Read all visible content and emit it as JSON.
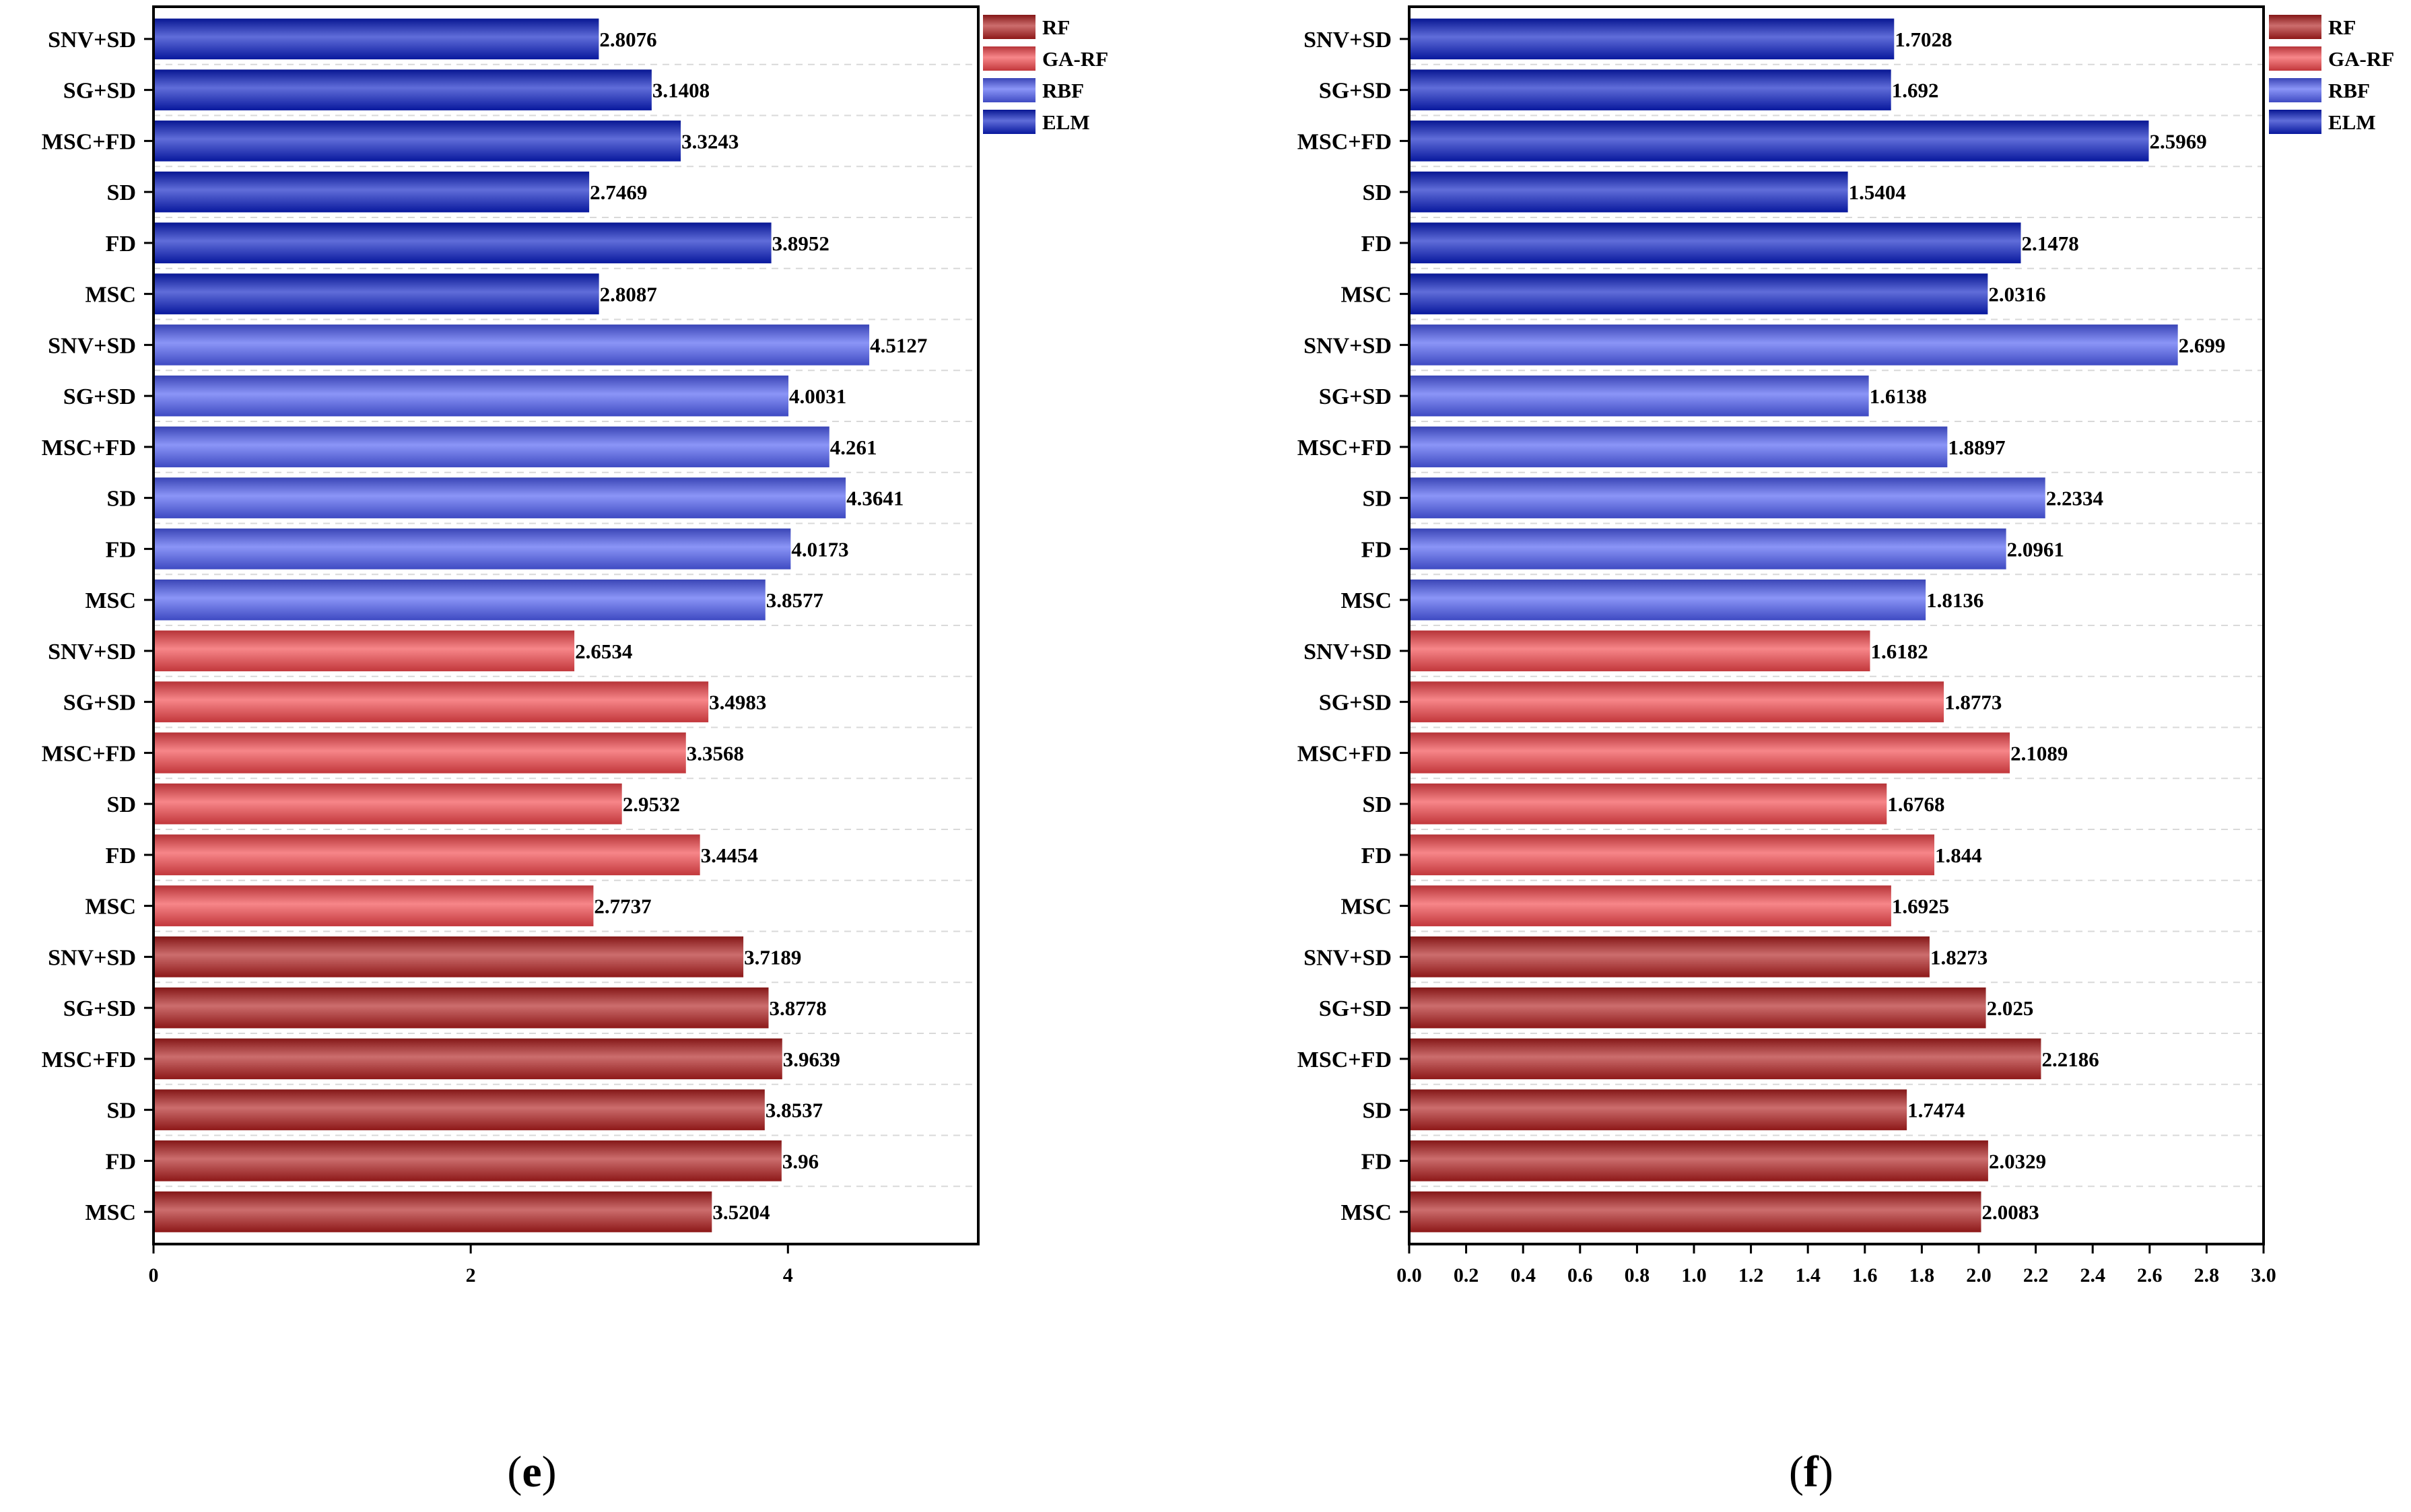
{
  "series_colors": {
    "RF": "#b01e1e",
    "GA-RF": "#f2454a",
    "RBF": "#4d5cf2",
    "ELM": "#0a1ec4"
  },
  "legend": [
    "RF",
    "GA-RF",
    "RBF",
    "ELM"
  ],
  "chart_data": [
    {
      "type": "bar",
      "orientation": "horizontal",
      "panel_label": "e",
      "xlim": [
        0,
        5.2
      ],
      "xticks": [
        0,
        2,
        4
      ],
      "xtick_labels": [
        "0",
        "2",
        "4"
      ],
      "legend_position": "top-right",
      "grid": true,
      "bars": [
        {
          "group": "RF",
          "label": "MSC",
          "value": 3.5204,
          "value_label": "3.5204"
        },
        {
          "group": "RF",
          "label": "FD",
          "value": 3.96,
          "value_label": "3.96"
        },
        {
          "group": "RF",
          "label": "SD",
          "value": 3.8537,
          "value_label": "3.8537"
        },
        {
          "group": "RF",
          "label": "MSC+FD",
          "value": 3.9639,
          "value_label": "3.9639"
        },
        {
          "group": "RF",
          "label": "SG+SD",
          "value": 3.8778,
          "value_label": "3.8778"
        },
        {
          "group": "RF",
          "label": "SNV+SD",
          "value": 3.7189,
          "value_label": "3.7189"
        },
        {
          "group": "GA-RF",
          "label": "MSC",
          "value": 2.7737,
          "value_label": "2.7737"
        },
        {
          "group": "GA-RF",
          "label": "FD",
          "value": 3.4454,
          "value_label": "3.4454"
        },
        {
          "group": "GA-RF",
          "label": "SD",
          "value": 2.9532,
          "value_label": "2.9532"
        },
        {
          "group": "GA-RF",
          "label": "MSC+FD",
          "value": 3.3568,
          "value_label": "3.3568"
        },
        {
          "group": "GA-RF",
          "label": "SG+SD",
          "value": 3.4983,
          "value_label": "3.4983"
        },
        {
          "group": "GA-RF",
          "label": "SNV+SD",
          "value": 2.6534,
          "value_label": "2.6534"
        },
        {
          "group": "RBF",
          "label": "MSC",
          "value": 3.8577,
          "value_label": "3.8577"
        },
        {
          "group": "RBF",
          "label": "FD",
          "value": 4.0173,
          "value_label": "4.0173"
        },
        {
          "group": "RBF",
          "label": "SD",
          "value": 4.3641,
          "value_label": "4.3641"
        },
        {
          "group": "RBF",
          "label": "MSC+FD",
          "value": 4.261,
          "value_label": "4.261"
        },
        {
          "group": "RBF",
          "label": "SG+SD",
          "value": 4.0031,
          "value_label": "4.0031"
        },
        {
          "group": "RBF",
          "label": "SNV+SD",
          "value": 4.5127,
          "value_label": "4.5127"
        },
        {
          "group": "ELM",
          "label": "MSC",
          "value": 2.8087,
          "value_label": "2.8087"
        },
        {
          "group": "ELM",
          "label": "FD",
          "value": 3.8952,
          "value_label": "3.8952"
        },
        {
          "group": "ELM",
          "label": "SD",
          "value": 2.7469,
          "value_label": "2.7469"
        },
        {
          "group": "ELM",
          "label": "MSC+FD",
          "value": 3.3243,
          "value_label": "3.3243"
        },
        {
          "group": "ELM",
          "label": "SG+SD",
          "value": 3.1408,
          "value_label": "3.1408"
        },
        {
          "group": "ELM",
          "label": "SNV+SD",
          "value": 2.8076,
          "value_label": "2.8076"
        }
      ]
    },
    {
      "type": "bar",
      "orientation": "horizontal",
      "panel_label": "f",
      "xlim": [
        0,
        3.0
      ],
      "xticks": [
        0,
        0.2,
        0.4,
        0.6,
        0.8,
        1.0,
        1.2,
        1.4,
        1.6,
        1.8,
        2.0,
        2.2,
        2.4,
        2.6,
        2.8,
        3.0
      ],
      "xtick_labels": [
        "0.0",
        "0.2",
        "0.4",
        "0.6",
        "0.8",
        "1.0",
        "1.2",
        "1.4",
        "1.6",
        "1.8",
        "2.0",
        "2.2",
        "2.4",
        "2.6",
        "2.8",
        "3.0"
      ],
      "legend_position": "top-right",
      "grid": true,
      "bars": [
        {
          "group": "RF",
          "label": "MSC",
          "value": 2.0083,
          "value_label": "2.0083"
        },
        {
          "group": "RF",
          "label": "FD",
          "value": 2.0329,
          "value_label": "2.0329"
        },
        {
          "group": "RF",
          "label": "SD",
          "value": 1.7474,
          "value_label": "1.7474"
        },
        {
          "group": "RF",
          "label": "MSC+FD",
          "value": 2.2186,
          "value_label": "2.2186"
        },
        {
          "group": "RF",
          "label": "SG+SD",
          "value": 2.025,
          "value_label": "2.025"
        },
        {
          "group": "RF",
          "label": "SNV+SD",
          "value": 1.8273,
          "value_label": "1.8273"
        },
        {
          "group": "GA-RF",
          "label": "MSC",
          "value": 1.6925,
          "value_label": "1.6925"
        },
        {
          "group": "GA-RF",
          "label": "FD",
          "value": 1.844,
          "value_label": "1.844"
        },
        {
          "group": "GA-RF",
          "label": "SD",
          "value": 1.6768,
          "value_label": "1.6768"
        },
        {
          "group": "GA-RF",
          "label": "MSC+FD",
          "value": 2.1089,
          "value_label": "2.1089"
        },
        {
          "group": "GA-RF",
          "label": "SG+SD",
          "value": 1.8773,
          "value_label": "1.8773"
        },
        {
          "group": "GA-RF",
          "label": "SNV+SD",
          "value": 1.6182,
          "value_label": "1.6182"
        },
        {
          "group": "RBF",
          "label": "MSC",
          "value": 1.8136,
          "value_label": "1.8136"
        },
        {
          "group": "RBF",
          "label": "FD",
          "value": 2.0961,
          "value_label": "2.0961"
        },
        {
          "group": "RBF",
          "label": "SD",
          "value": 2.2334,
          "value_label": "2.2334"
        },
        {
          "group": "RBF",
          "label": "MSC+FD",
          "value": 1.8897,
          "value_label": "1.8897"
        },
        {
          "group": "RBF",
          "label": "SG+SD",
          "value": 1.6138,
          "value_label": "1.6138"
        },
        {
          "group": "RBF",
          "label": "SNV+SD",
          "value": 2.699,
          "value_label": "2.699"
        },
        {
          "group": "ELM",
          "label": "MSC",
          "value": 2.0316,
          "value_label": "2.0316"
        },
        {
          "group": "ELM",
          "label": "FD",
          "value": 2.1478,
          "value_label": "2.1478"
        },
        {
          "group": "ELM",
          "label": "SD",
          "value": 1.5404,
          "value_label": "1.5404"
        },
        {
          "group": "ELM",
          "label": "MSC+FD",
          "value": 2.5969,
          "value_label": "2.5969"
        },
        {
          "group": "ELM",
          "label": "SG+SD",
          "value": 1.692,
          "value_label": "1.692"
        },
        {
          "group": "ELM",
          "label": "SNV+SD",
          "value": 1.7028,
          "value_label": "1.7028"
        }
      ]
    }
  ]
}
